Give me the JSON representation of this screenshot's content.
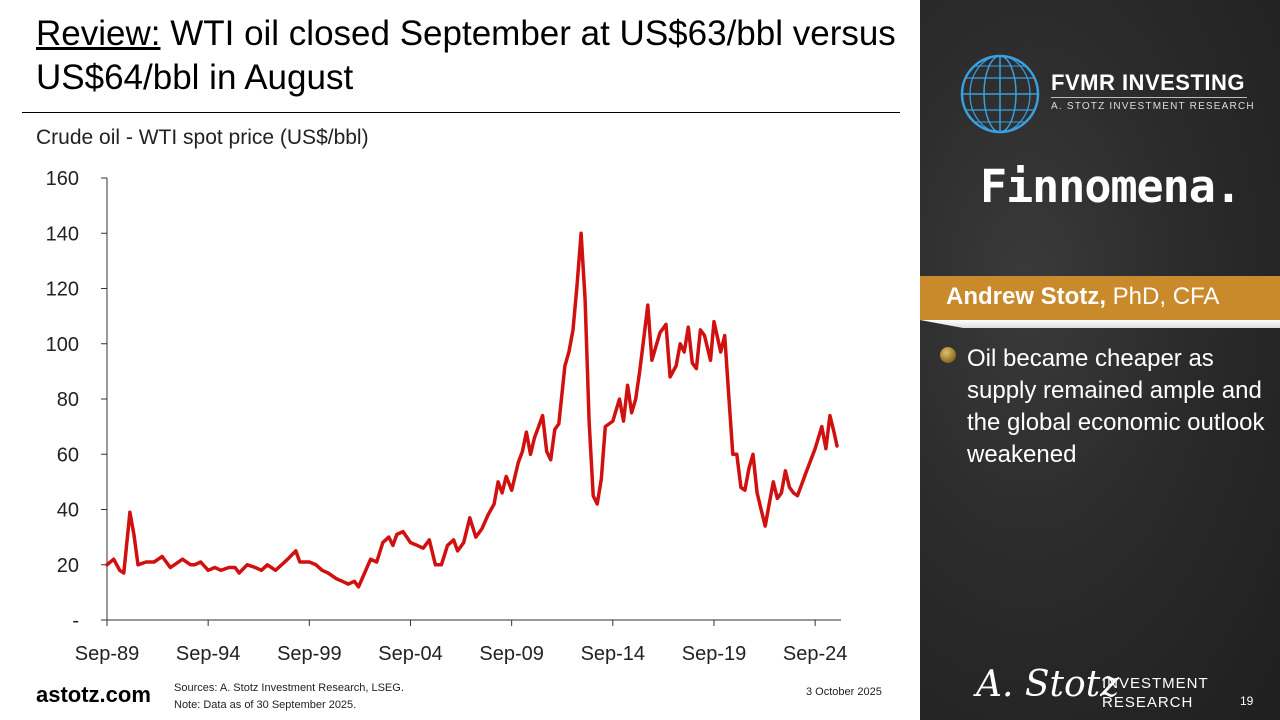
{
  "slide": {
    "title_prefix": "Review:",
    "title_rest": " WTI oil closed September at US$63/bbl versus US$64/bbl in August",
    "bullet": "Oil became cheaper as supply remained ample and the global economic outlook weakened",
    "footer_site": "astotz.com",
    "sources": "Sources: A. Stotz Investment Research, LSEG.",
    "note": "Note: Data as of 30 September 2025.",
    "date": "3 October 2025",
    "page": "19"
  },
  "brand": {
    "name": "FVMR INVESTING",
    "sub": "A. STOTZ INVESTMENT RESEARCH",
    "partner": "Finnomena.",
    "author_name": "Andrew Stotz,",
    "author_cred": " PhD, CFA",
    "sig": "A. Stotz",
    "investment": "INVESTMENT",
    "research": "RESEARCH"
  },
  "colors": {
    "line": "#d11010",
    "gold": "#c88a2a",
    "dark": "#2b2b2b",
    "globe": "#3aa0e0"
  },
  "chart_data": {
    "type": "line",
    "title": "Crude oil - WTI spot price (US$/bbl)",
    "xlabel": "",
    "ylabel": "",
    "ylim": [
      0,
      160
    ],
    "yticks": [
      0,
      20,
      40,
      60,
      80,
      100,
      120,
      140,
      160
    ],
    "ytick_labels": [
      "-",
      "20",
      "40",
      "60",
      "80",
      "100",
      "120",
      "140",
      "160"
    ],
    "xlim": [
      1989.67,
      2025.75
    ],
    "xticks": [
      1989.67,
      1994.67,
      1999.67,
      2004.67,
      2009.67,
      2014.67,
      2019.67,
      2024.67
    ],
    "xtick_labels": [
      "Sep-89",
      "Sep-94",
      "Sep-99",
      "Sep-04",
      "Sep-09",
      "Sep-14",
      "Sep-19",
      "Sep-24"
    ],
    "grid": false,
    "series": [
      {
        "name": "",
        "points": [
          [
            1989.67,
            20
          ],
          [
            1990.0,
            22
          ],
          [
            1990.3,
            18
          ],
          [
            1990.5,
            17
          ],
          [
            1990.8,
            39
          ],
          [
            1991.0,
            31
          ],
          [
            1991.2,
            20
          ],
          [
            1991.6,
            21
          ],
          [
            1992.0,
            21
          ],
          [
            1992.4,
            23
          ],
          [
            1992.8,
            19
          ],
          [
            1993.0,
            20
          ],
          [
            1993.4,
            22
          ],
          [
            1993.8,
            20
          ],
          [
            1994.0,
            20
          ],
          [
            1994.3,
            21
          ],
          [
            1994.67,
            18
          ],
          [
            1995.0,
            19
          ],
          [
            1995.3,
            18
          ],
          [
            1995.7,
            19
          ],
          [
            1996.0,
            19
          ],
          [
            1996.2,
            17
          ],
          [
            1996.6,
            20
          ],
          [
            1997.0,
            19
          ],
          [
            1997.3,
            18
          ],
          [
            1997.6,
            20
          ],
          [
            1998.0,
            18
          ],
          [
            1998.3,
            20
          ],
          [
            1998.6,
            22
          ],
          [
            1999.0,
            25
          ],
          [
            1999.2,
            21
          ],
          [
            1999.67,
            21
          ],
          [
            2000.0,
            20
          ],
          [
            2000.3,
            18
          ],
          [
            2000.6,
            17
          ],
          [
            2001.0,
            15
          ],
          [
            2001.3,
            14
          ],
          [
            2001.6,
            13
          ],
          [
            2001.9,
            14
          ],
          [
            2002.1,
            12
          ],
          [
            2002.4,
            17
          ],
          [
            2002.7,
            22
          ],
          [
            2003.0,
            21
          ],
          [
            2003.3,
            28
          ],
          [
            2003.6,
            30
          ],
          [
            2003.8,
            27
          ],
          [
            2004.0,
            31
          ],
          [
            2004.3,
            32
          ],
          [
            2004.67,
            28
          ],
          [
            2005.0,
            27
          ],
          [
            2005.3,
            26
          ],
          [
            2005.6,
            29
          ],
          [
            2005.9,
            20
          ],
          [
            2006.2,
            20
          ],
          [
            2006.5,
            27
          ],
          [
            2006.8,
            29
          ],
          [
            2007.0,
            25
          ],
          [
            2007.3,
            28
          ],
          [
            2007.6,
            37
          ],
          [
            2007.9,
            30
          ],
          [
            2008.2,
            33
          ],
          [
            2008.5,
            38
          ],
          [
            2008.8,
            42
          ],
          [
            2009.0,
            50
          ],
          [
            2009.2,
            46
          ],
          [
            2009.4,
            52
          ],
          [
            2009.67,
            47
          ],
          [
            2010.0,
            57
          ],
          [
            2010.2,
            61
          ],
          [
            2010.4,
            68
          ],
          [
            2010.6,
            60
          ],
          [
            2010.8,
            66
          ],
          [
            2011.0,
            70
          ],
          [
            2011.2,
            74
          ],
          [
            2011.4,
            61
          ],
          [
            2011.6,
            58
          ],
          [
            2011.8,
            69
          ],
          [
            2012.0,
            71
          ],
          [
            2012.3,
            92
          ],
          [
            2012.5,
            97
          ],
          [
            2012.7,
            105
          ],
          [
            2012.9,
            121
          ],
          [
            2013.1,
            140
          ],
          [
            2013.3,
            116
          ],
          [
            2013.5,
            72
          ],
          [
            2013.7,
            45
          ],
          [
            2013.9,
            42
          ],
          [
            2014.1,
            51
          ],
          [
            2014.3,
            70
          ],
          [
            2014.67,
            72
          ],
          [
            2015.0,
            80
          ],
          [
            2015.2,
            72
          ],
          [
            2015.4,
            85
          ],
          [
            2015.6,
            75
          ],
          [
            2015.8,
            80
          ],
          [
            2016.0,
            90
          ],
          [
            2016.2,
            102
          ],
          [
            2016.4,
            114
          ],
          [
            2016.6,
            94
          ],
          [
            2016.8,
            99
          ],
          [
            2017.0,
            104
          ],
          [
            2017.3,
            107
          ],
          [
            2017.5,
            88
          ],
          [
            2017.8,
            92
          ],
          [
            2018.0,
            100
          ],
          [
            2018.2,
            97
          ],
          [
            2018.4,
            106
          ],
          [
            2018.6,
            93
          ],
          [
            2018.8,
            91
          ],
          [
            2019.0,
            105
          ],
          [
            2019.2,
            103
          ],
          [
            2019.5,
            94
          ],
          [
            2019.67,
            108
          ],
          [
            2020.0,
            97
          ],
          [
            2020.2,
            103
          ],
          [
            2020.4,
            81
          ],
          [
            2020.6,
            60
          ],
          [
            2020.8,
            60
          ],
          [
            2021.0,
            48
          ],
          [
            2021.2,
            47
          ],
          [
            2021.4,
            55
          ],
          [
            2021.6,
            60
          ],
          [
            2021.8,
            46
          ],
          [
            2022.0,
            40
          ],
          [
            2022.2,
            34
          ],
          [
            2022.4,
            42
          ],
          [
            2022.6,
            50
          ],
          [
            2022.8,
            44
          ],
          [
            2023.0,
            46
          ],
          [
            2023.2,
            54
          ],
          [
            2023.4,
            48
          ],
          [
            2023.6,
            46
          ],
          [
            2023.8,
            45
          ],
          [
            2024.0,
            49
          ],
          [
            2024.2,
            53
          ],
          [
            2024.67,
            62
          ],
          [
            2025.0,
            70
          ],
          [
            2025.2,
            62
          ],
          [
            2025.4,
            74
          ],
          [
            2025.6,
            68
          ],
          [
            2025.75,
            63
          ]
        ]
      }
    ]
  }
}
